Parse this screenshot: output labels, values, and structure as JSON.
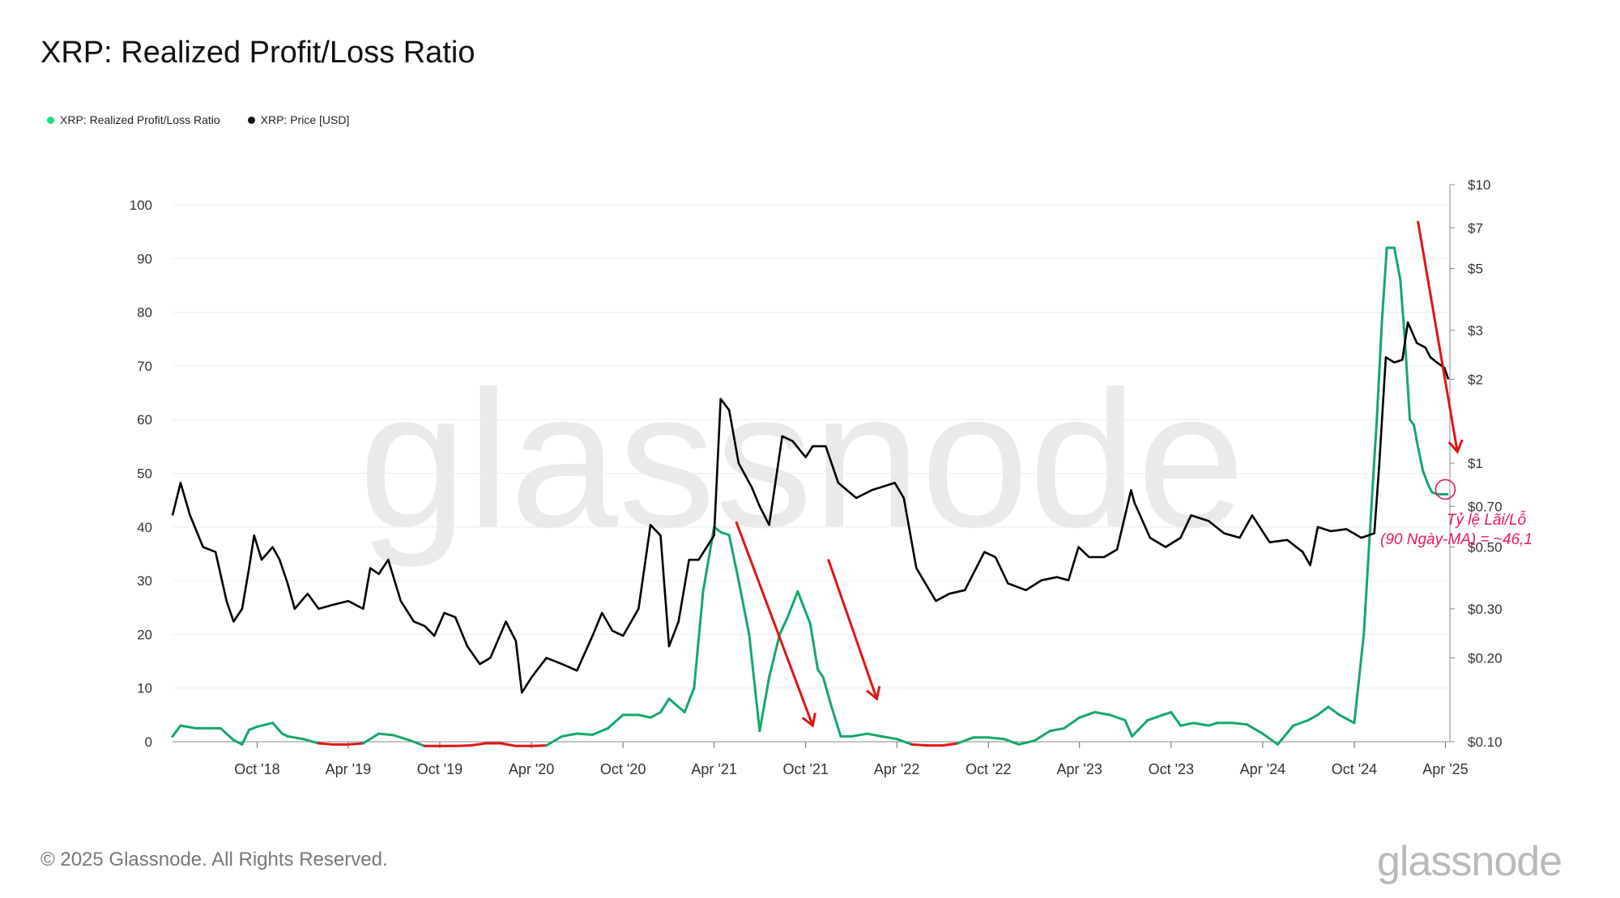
{
  "title": "XRP: Realized Profit/Loss Ratio",
  "legend": [
    {
      "label": "XRP: Realized Profit/Loss Ratio",
      "color": "#16e08a"
    },
    {
      "label": "XRP: Price [USD]",
      "color": "#111111"
    }
  ],
  "footer": "© 2025 Glassnode. All Rights Reserved.",
  "brand": "glassnode",
  "watermark": "glassnode",
  "annotation": {
    "line1": "Tỷ lệ Lãi/Lỗ",
    "line2": "(90 Ngày-MA) = ~46,1",
    "color": "#e8185c"
  },
  "chart_data": {
    "type": "line",
    "x_tick_labels": [
      "Oct '18",
      "Apr '19",
      "Oct '19",
      "Apr '20",
      "Oct '20",
      "Apr '21",
      "Oct '21",
      "Apr '22",
      "Oct '22",
      "Apr '23",
      "Oct '23",
      "Apr '24",
      "Oct '24",
      "Apr '25"
    ],
    "x_tick_dates": [
      "2018-10-01",
      "2019-04-01",
      "2019-10-01",
      "2020-04-01",
      "2020-10-01",
      "2021-04-01",
      "2021-10-01",
      "2022-04-01",
      "2022-10-01",
      "2023-04-01",
      "2023-10-01",
      "2024-04-01",
      "2024-10-01",
      "2025-04-01"
    ],
    "x_range": [
      "2018-04-15",
      "2025-04-10"
    ],
    "left_axis": {
      "ticks": [
        0,
        10,
        20,
        30,
        40,
        50,
        60,
        70,
        80,
        90,
        100
      ],
      "ylim": [
        0,
        100
      ]
    },
    "right_axis": {
      "scale": "log",
      "ticks": [
        0.1,
        0.2,
        0.3,
        0.5,
        0.7,
        1,
        2,
        3,
        5,
        7,
        10
      ],
      "tick_labels": [
        "$0.10",
        "$0.20",
        "$0.30",
        "$0.50",
        "$0.70",
        "$1",
        "$2",
        "$3",
        "$5",
        "$7",
        "$10"
      ],
      "ylim": [
        0.1,
        10
      ]
    },
    "grid": true,
    "series": [
      {
        "name": "XRP: Realized Profit/Loss Ratio",
        "axis": "left",
        "color_profit": "#13a86b",
        "color_loss": "#e01414",
        "x": [
          "2018-04-15",
          "2018-05-01",
          "2018-06-01",
          "2018-07-01",
          "2018-07-20",
          "2018-08-15",
          "2018-09-01",
          "2018-09-15",
          "2018-10-01",
          "2018-11-01",
          "2018-11-20",
          "2018-12-01",
          "2019-01-01",
          "2019-02-01",
          "2019-03-01",
          "2019-04-01",
          "2019-05-01",
          "2019-06-01",
          "2019-07-01",
          "2019-08-01",
          "2019-09-01",
          "2019-10-01",
          "2019-11-01",
          "2019-12-01",
          "2020-01-01",
          "2020-02-01",
          "2020-03-01",
          "2020-04-01",
          "2020-05-01",
          "2020-06-01",
          "2020-07-01",
          "2020-08-01",
          "2020-09-01",
          "2020-10-01",
          "2020-11-01",
          "2020-11-25",
          "2020-12-15",
          "2021-01-01",
          "2021-02-01",
          "2021-02-20",
          "2021-03-10",
          "2021-04-01",
          "2021-04-15",
          "2021-05-01",
          "2021-05-20",
          "2021-06-10",
          "2021-07-01",
          "2021-07-20",
          "2021-08-10",
          "2021-08-25",
          "2021-09-15",
          "2021-10-10",
          "2021-10-25",
          "2021-11-05",
          "2021-11-20",
          "2021-12-10",
          "2022-01-01",
          "2022-02-01",
          "2022-03-01",
          "2022-04-01",
          "2022-05-01",
          "2022-06-01",
          "2022-07-01",
          "2022-08-01",
          "2022-09-01",
          "2022-10-01",
          "2022-11-01",
          "2022-12-01",
          "2023-01-01",
          "2023-02-01",
          "2023-03-01",
          "2023-04-01",
          "2023-05-01",
          "2023-06-01",
          "2023-07-01",
          "2023-07-15",
          "2023-08-15",
          "2023-09-15",
          "2023-10-01",
          "2023-10-20",
          "2023-11-15",
          "2023-12-15",
          "2024-01-01",
          "2024-02-01",
          "2024-03-01",
          "2024-04-01",
          "2024-05-01",
          "2024-06-01",
          "2024-07-01",
          "2024-07-20",
          "2024-08-10",
          "2024-09-01",
          "2024-10-01",
          "2024-10-20",
          "2024-11-05",
          "2024-11-15",
          "2024-11-25",
          "2024-12-05",
          "2024-12-20",
          "2025-01-01",
          "2025-01-10",
          "2025-01-20",
          "2025-01-28",
          "2025-02-05",
          "2025-02-15",
          "2025-02-25",
          "2025-03-05",
          "2025-03-15",
          "2025-03-25",
          "2025-04-05"
        ],
        "values": [
          1.0,
          3.0,
          2.5,
          2.5,
          2.5,
          0.3,
          -0.5,
          2.2,
          2.8,
          3.5,
          1.5,
          1.0,
          0.5,
          -0.3,
          -0.5,
          -0.5,
          -0.3,
          1.5,
          1.2,
          0.3,
          -0.8,
          -1.0,
          -0.8,
          -0.7,
          -0.3,
          -0.3,
          -0.8,
          -0.8,
          -0.7,
          1.0,
          1.5,
          1.3,
          2.5,
          5.0,
          5.0,
          4.5,
          5.5,
          8.0,
          5.5,
          10.0,
          28.0,
          40.0,
          39.0,
          38.5,
          30.0,
          20.0,
          2.0,
          12.0,
          20.0,
          23.0,
          28.0,
          22.0,
          13.5,
          12.0,
          7.0,
          1.0,
          1.0,
          1.5,
          1.0,
          0.5,
          -0.5,
          -0.7,
          -0.7,
          -0.3,
          0.8,
          0.8,
          0.5,
          -0.5,
          0.2,
          2.0,
          2.5,
          4.5,
          5.5,
          5.0,
          4.0,
          1.0,
          4.0,
          5.0,
          5.5,
          3.0,
          3.5,
          3.0,
          3.5,
          3.5,
          3.2,
          1.5,
          -0.5,
          3.0,
          4.0,
          5.0,
          6.5,
          5.0,
          3.5,
          20.0,
          45.0,
          60.0,
          78.0,
          92.0,
          92.0,
          86.0,
          75.0,
          60.0,
          59.0,
          55.0,
          50.5,
          48.0,
          46.5,
          46.1,
          46.1,
          46.1
        ]
      },
      {
        "name": "XRP: Price [USD]",
        "axis": "right",
        "color": "#000000",
        "x": [
          "2018-04-15",
          "2018-05-01",
          "2018-05-20",
          "2018-06-15",
          "2018-07-10",
          "2018-08-01",
          "2018-08-15",
          "2018-09-01",
          "2018-09-15",
          "2018-09-25",
          "2018-10-10",
          "2018-11-01",
          "2018-11-15",
          "2018-12-01",
          "2018-12-15",
          "2019-01-10",
          "2019-02-01",
          "2019-03-01",
          "2019-04-01",
          "2019-05-01",
          "2019-05-15",
          "2019-06-01",
          "2019-06-20",
          "2019-07-15",
          "2019-08-10",
          "2019-09-01",
          "2019-09-20",
          "2019-10-10",
          "2019-11-01",
          "2019-11-25",
          "2019-12-20",
          "2020-01-10",
          "2020-02-10",
          "2020-03-01",
          "2020-03-13",
          "2020-04-01",
          "2020-05-01",
          "2020-06-01",
          "2020-07-01",
          "2020-08-01",
          "2020-08-20",
          "2020-09-10",
          "2020-10-01",
          "2020-11-01",
          "2020-11-25",
          "2020-12-15",
          "2021-01-01",
          "2021-01-20",
          "2021-02-10",
          "2021-03-01",
          "2021-04-01",
          "2021-04-14",
          "2021-05-01",
          "2021-05-20",
          "2021-06-15",
          "2021-07-01",
          "2021-07-20",
          "2021-08-15",
          "2021-09-05",
          "2021-10-01",
          "2021-10-15",
          "2021-11-10",
          "2021-12-05",
          "2022-01-10",
          "2022-02-10",
          "2022-03-01",
          "2022-03-28",
          "2022-04-15",
          "2022-05-10",
          "2022-06-18",
          "2022-07-15",
          "2022-08-15",
          "2022-09-23",
          "2022-10-15",
          "2022-11-09",
          "2022-12-15",
          "2023-01-15",
          "2023-02-15",
          "2023-03-10",
          "2023-03-30",
          "2023-04-20",
          "2023-05-20",
          "2023-06-15",
          "2023-07-13",
          "2023-07-20",
          "2023-08-20",
          "2023-09-20",
          "2023-10-20",
          "2023-11-10",
          "2023-12-15",
          "2024-01-15",
          "2024-02-15",
          "2024-03-11",
          "2024-04-15",
          "2024-05-20",
          "2024-06-20",
          "2024-07-05",
          "2024-07-20",
          "2024-08-15",
          "2024-09-15",
          "2024-10-15",
          "2024-11-10",
          "2024-11-20",
          "2024-12-03",
          "2024-12-20",
          "2025-01-05",
          "2025-01-16",
          "2025-02-03",
          "2025-02-20",
          "2025-03-02",
          "2025-03-15",
          "2025-03-30",
          "2025-04-07"
        ],
        "values": [
          0.65,
          0.85,
          0.65,
          0.5,
          0.48,
          0.32,
          0.27,
          0.3,
          0.42,
          0.55,
          0.45,
          0.5,
          0.45,
          0.37,
          0.3,
          0.34,
          0.3,
          0.31,
          0.32,
          0.3,
          0.42,
          0.4,
          0.45,
          0.32,
          0.27,
          0.26,
          0.24,
          0.29,
          0.28,
          0.22,
          0.19,
          0.2,
          0.27,
          0.23,
          0.15,
          0.17,
          0.2,
          0.19,
          0.18,
          0.24,
          0.29,
          0.25,
          0.24,
          0.3,
          0.6,
          0.55,
          0.22,
          0.27,
          0.45,
          0.45,
          0.55,
          1.7,
          1.55,
          1.0,
          0.82,
          0.7,
          0.6,
          1.25,
          1.2,
          1.05,
          1.15,
          1.15,
          0.85,
          0.75,
          0.8,
          0.82,
          0.85,
          0.75,
          0.42,
          0.32,
          0.34,
          0.35,
          0.48,
          0.46,
          0.37,
          0.35,
          0.38,
          0.39,
          0.38,
          0.5,
          0.46,
          0.46,
          0.49,
          0.8,
          0.72,
          0.54,
          0.5,
          0.54,
          0.65,
          0.62,
          0.56,
          0.54,
          0.65,
          0.52,
          0.53,
          0.48,
          0.43,
          0.59,
          0.57,
          0.58,
          0.54,
          0.56,
          1.0,
          2.4,
          2.3,
          2.35,
          3.2,
          2.7,
          2.6,
          2.4,
          2.3,
          2.2,
          2.0
        ]
      }
    ],
    "annotations": [
      {
        "type": "arrow",
        "color": "#e01414",
        "from": [
          "2021-05-15",
          41
        ],
        "to": [
          "2021-10-15",
          3
        ]
      },
      {
        "type": "arrow",
        "color": "#e01414",
        "from": [
          "2021-11-15",
          34
        ],
        "to": [
          "2022-02-20",
          8
        ]
      },
      {
        "type": "arrow",
        "color": "#e01414",
        "from": [
          "2025-02-05",
          97
        ],
        "to": [
          "2025-04-25",
          54
        ]
      },
      {
        "type": "marker",
        "color": "#e8185c",
        "at": [
          "2025-04-01",
          47
        ]
      }
    ]
  }
}
